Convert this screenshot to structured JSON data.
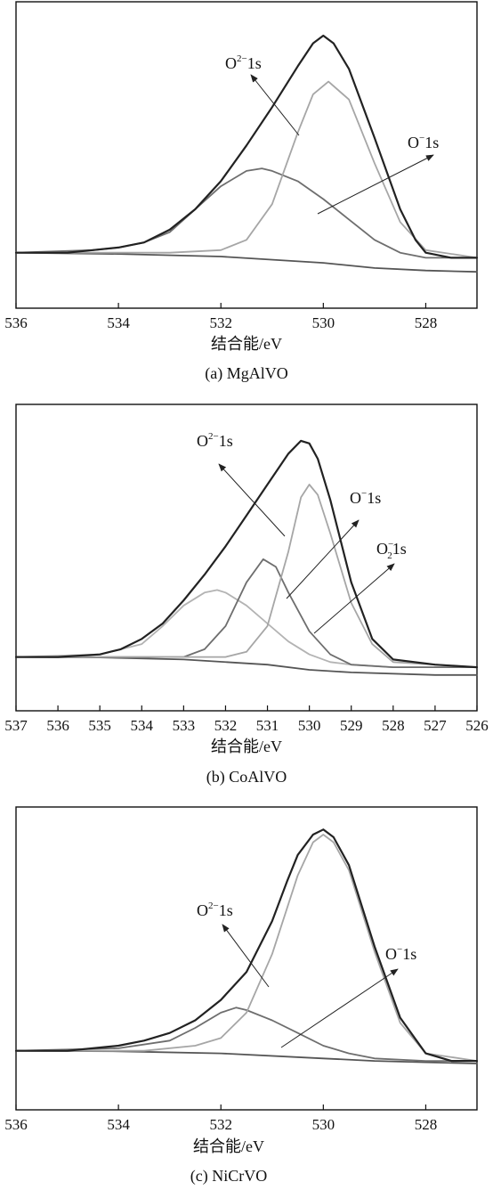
{
  "chart_data": [
    {
      "type": "line",
      "panel": "a",
      "caption": "(a) MgAlVO",
      "xlabel": "结合能/eV",
      "xlim": [
        536,
        527
      ],
      "xticks": [
        536,
        534,
        532,
        530,
        528
      ],
      "grid": false,
      "series": [
        {
          "role": "envelope",
          "color": "#222222",
          "x": [
            536.0,
            535.5,
            535.0,
            534.5,
            534.0,
            533.5,
            533.0,
            532.5,
            532.0,
            531.5,
            531.0,
            530.5,
            530.2,
            530.0,
            529.8,
            529.5,
            529.0,
            528.5,
            528.2,
            528.0,
            527.5,
            527.0
          ],
          "y": [
            0.05,
            0.05,
            0.05,
            0.06,
            0.07,
            0.09,
            0.14,
            0.22,
            0.33,
            0.47,
            0.62,
            0.78,
            0.87,
            0.9,
            0.87,
            0.77,
            0.5,
            0.22,
            0.1,
            0.05,
            0.03,
            0.03
          ]
        },
        {
          "role": "peak",
          "name": "O²⁻1s",
          "color": "#6e6e6e",
          "x": [
            536.0,
            534.5,
            534.0,
            533.5,
            533.0,
            532.5,
            532.0,
            531.5,
            531.2,
            531.0,
            530.5,
            530.0,
            529.5,
            529.0,
            528.5,
            528.0,
            527.0
          ],
          "y": [
            0.05,
            0.06,
            0.07,
            0.09,
            0.13,
            0.22,
            0.31,
            0.37,
            0.38,
            0.37,
            0.33,
            0.26,
            0.18,
            0.1,
            0.05,
            0.03,
            0.03
          ]
        },
        {
          "role": "peak",
          "name": "O⁻1s",
          "color": "#a6a6a6",
          "x": [
            536.0,
            533.0,
            532.0,
            531.5,
            531.0,
            530.5,
            530.2,
            529.9,
            529.5,
            529.0,
            528.5,
            528.0,
            527.0
          ],
          "y": [
            0.05,
            0.05,
            0.06,
            0.1,
            0.24,
            0.52,
            0.67,
            0.72,
            0.65,
            0.4,
            0.17,
            0.06,
            0.03
          ]
        },
        {
          "role": "background",
          "color": "#555555",
          "x": [
            536.0,
            534.0,
            532.0,
            530.0,
            529.0,
            528.0,
            527.0
          ],
          "y": [
            0.05,
            0.045,
            0.035,
            0.01,
            -0.01,
            -0.02,
            -0.025
          ]
        }
      ],
      "annotations": [
        {
          "label": "O",
          "sup": "2−",
          "suffix": "1s"
        },
        {
          "label": "O",
          "sup": "−",
          "suffix": "1s"
        }
      ]
    },
    {
      "type": "line",
      "panel": "b",
      "caption": "(b) CoAlVO",
      "xlabel": "结合能/eV",
      "xlim": [
        537,
        526
      ],
      "xticks": [
        537,
        536,
        535,
        534,
        533,
        532,
        531,
        530,
        529,
        528,
        527,
        526
      ],
      "grid": false,
      "series": [
        {
          "role": "envelope",
          "color": "#222222",
          "x": [
            537.0,
            536.0,
            535.0,
            534.5,
            534.0,
            533.5,
            533.0,
            532.5,
            532.0,
            531.5,
            531.0,
            530.5,
            530.2,
            530.0,
            529.8,
            529.5,
            529.0,
            528.5,
            528.0,
            527.0,
            526.0
          ],
          "y": [
            0.05,
            0.05,
            0.06,
            0.08,
            0.12,
            0.18,
            0.27,
            0.37,
            0.48,
            0.6,
            0.72,
            0.84,
            0.89,
            0.88,
            0.82,
            0.66,
            0.34,
            0.12,
            0.04,
            0.02,
            0.01
          ]
        },
        {
          "role": "peak",
          "name": "O₂⁻1s",
          "color": "#b3b3b3",
          "x": [
            537.0,
            535.0,
            534.0,
            533.5,
            533.0,
            532.5,
            532.2,
            532.0,
            531.5,
            531.0,
            530.5,
            530.0,
            529.5,
            529.0,
            528.0,
            526.0
          ],
          "y": [
            0.05,
            0.06,
            0.1,
            0.17,
            0.25,
            0.3,
            0.31,
            0.3,
            0.25,
            0.18,
            0.11,
            0.06,
            0.03,
            0.02,
            0.01,
            0.01
          ]
        },
        {
          "role": "peak",
          "name": "O²⁻1s",
          "color": "#6e6e6e",
          "x": [
            537.0,
            533.0,
            532.5,
            532.0,
            531.5,
            531.1,
            530.8,
            530.5,
            530.0,
            529.5,
            529.0,
            528.0,
            526.0
          ],
          "y": [
            0.05,
            0.05,
            0.08,
            0.17,
            0.34,
            0.43,
            0.4,
            0.3,
            0.15,
            0.06,
            0.02,
            0.01,
            0.01
          ]
        },
        {
          "role": "peak",
          "name": "O⁻1s",
          "color": "#a6a6a6",
          "x": [
            537.0,
            532.0,
            531.5,
            531.0,
            530.5,
            530.2,
            530.0,
            529.8,
            529.5,
            529.0,
            528.5,
            528.0,
            526.0
          ],
          "y": [
            0.05,
            0.05,
            0.07,
            0.17,
            0.46,
            0.67,
            0.72,
            0.68,
            0.53,
            0.26,
            0.1,
            0.03,
            0.01
          ]
        },
        {
          "role": "background",
          "color": "#555555",
          "x": [
            537.0,
            535.0,
            533.0,
            531.0,
            530.0,
            529.0,
            527.0,
            526.0
          ],
          "y": [
            0.05,
            0.048,
            0.04,
            0.02,
            0.0,
            -0.01,
            -0.02,
            -0.02
          ]
        }
      ],
      "annotations": [
        {
          "label": "O",
          "sup": "2−",
          "suffix": "1s"
        },
        {
          "label": "O",
          "sup": "−",
          "suffix": "1s"
        },
        {
          "label": "O",
          "sup": "−",
          "sub": "2",
          "suffix": "1s"
        }
      ]
    },
    {
      "type": "line",
      "panel": "c",
      "caption": "(c) NiCrVO",
      "xlabel": "结合能/eV",
      "xlim": [
        536,
        527
      ],
      "xticks": [
        536,
        534,
        532,
        530,
        528
      ],
      "grid": false,
      "series": [
        {
          "role": "envelope",
          "color": "#222222",
          "x": [
            536.0,
            535.0,
            534.5,
            534.0,
            533.5,
            533.0,
            532.5,
            532.0,
            531.5,
            531.0,
            530.7,
            530.5,
            530.2,
            530.0,
            529.8,
            529.5,
            529.0,
            528.5,
            528.0,
            527.5,
            527.0
          ],
          "y": [
            0.05,
            0.05,
            0.06,
            0.07,
            0.09,
            0.12,
            0.17,
            0.25,
            0.36,
            0.56,
            0.72,
            0.82,
            0.9,
            0.92,
            0.89,
            0.78,
            0.46,
            0.18,
            0.04,
            0.01,
            0.01
          ]
        },
        {
          "role": "peak",
          "name": "O²⁻1s",
          "color": "#6e6e6e",
          "x": [
            536.0,
            534.0,
            533.0,
            532.5,
            532.0,
            531.7,
            531.5,
            531.0,
            530.5,
            530.0,
            529.5,
            529.0,
            528.0,
            527.0
          ],
          "y": [
            0.05,
            0.06,
            0.09,
            0.14,
            0.2,
            0.22,
            0.21,
            0.17,
            0.12,
            0.07,
            0.04,
            0.02,
            0.01,
            0.01
          ]
        },
        {
          "role": "peak",
          "name": "O⁻1s",
          "color": "#a6a6a6",
          "x": [
            536.0,
            533.5,
            532.5,
            532.0,
            531.5,
            531.0,
            530.5,
            530.2,
            530.0,
            529.8,
            529.5,
            529.0,
            528.5,
            528.0,
            527.0
          ],
          "y": [
            0.05,
            0.05,
            0.07,
            0.1,
            0.2,
            0.43,
            0.74,
            0.87,
            0.9,
            0.87,
            0.76,
            0.44,
            0.16,
            0.04,
            0.01
          ]
        },
        {
          "role": "background",
          "color": "#555555",
          "x": [
            536.0,
            534.0,
            532.0,
            530.0,
            529.0,
            528.0,
            527.0
          ],
          "y": [
            0.05,
            0.048,
            0.04,
            0.02,
            0.01,
            0.005,
            0.0
          ]
        }
      ],
      "annotations": [
        {
          "label": "O",
          "sup": "2−",
          "suffix": "1s"
        },
        {
          "label": "O",
          "sup": "−",
          "suffix": "1s"
        }
      ]
    }
  ]
}
